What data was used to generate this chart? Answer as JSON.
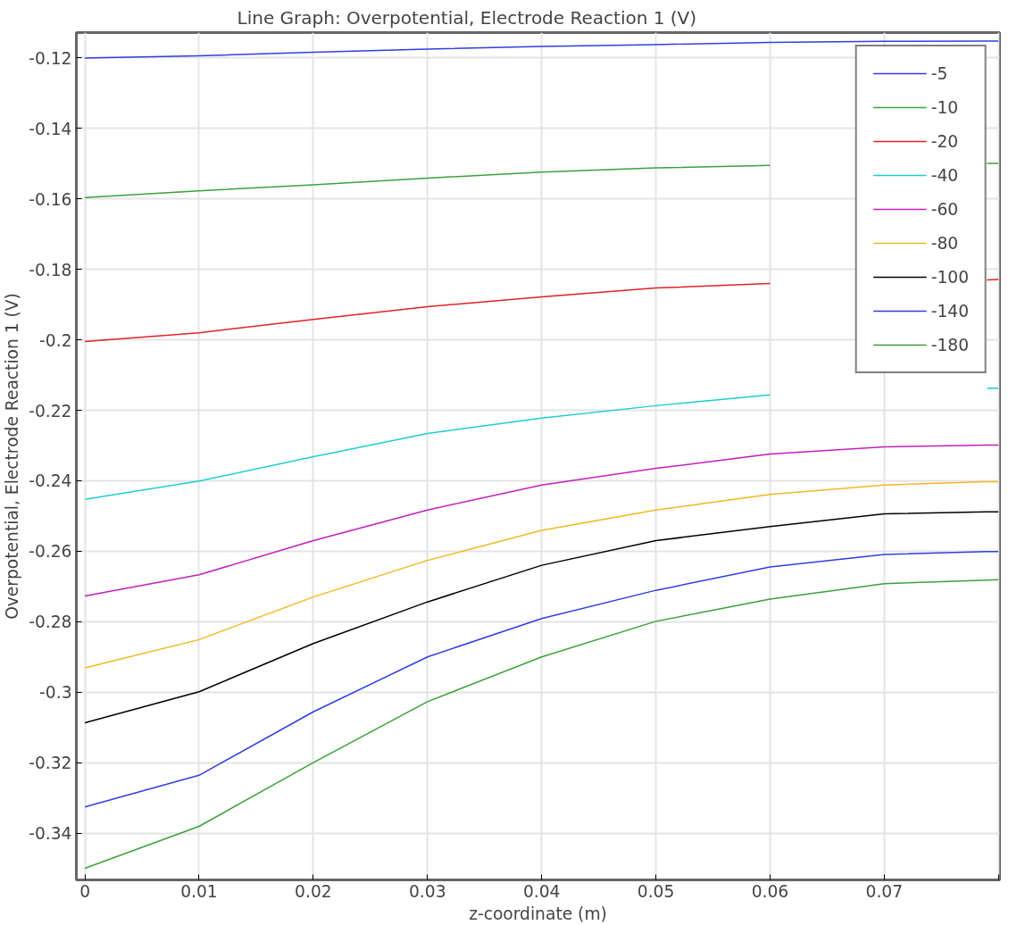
{
  "chart_data": {
    "type": "line",
    "title": "Line Graph: Overpotential, Electrode Reaction 1 (V)",
    "xlabel": "z-coordinate (m)",
    "ylabel": "Overpotential, Electrode Reaction 1 (V)",
    "x": [
      0,
      0.01,
      0.02,
      0.03,
      0.04,
      0.05,
      0.06,
      0.07,
      0.079,
      0.08
    ],
    "series": [
      {
        "name": "-5",
        "color": "#2d3fe0",
        "values": [
          -0.12,
          -0.1194,
          -0.1184,
          -0.1175,
          -0.1167,
          -0.1162,
          -0.1156,
          -0.1153,
          -0.1152,
          -0.1152
        ]
      },
      {
        "name": "-10",
        "color": "#3aa13a",
        "values": [
          -0.1596,
          -0.1577,
          -0.156,
          -0.1541,
          -0.1524,
          -0.1512,
          -0.1505,
          null,
          -0.1499,
          -0.1499
        ]
      },
      {
        "name": "-20",
        "color": "#e0202a",
        "values": [
          -0.2005,
          -0.198,
          -0.1942,
          -0.1906,
          -0.1878,
          -0.1853,
          -0.184,
          null,
          -0.183,
          -0.1829
        ]
      },
      {
        "name": "-40",
        "color": "#20cccc",
        "values": [
          -0.2453,
          -0.2401,
          -0.2332,
          -0.2266,
          -0.2222,
          -0.2187,
          -0.2156,
          null,
          -0.2138,
          -0.2137
        ]
      },
      {
        "name": "-60",
        "color": "#c020c0",
        "values": [
          -0.2727,
          -0.2667,
          -0.257,
          -0.2483,
          -0.2412,
          -0.2365,
          -0.2324,
          -0.2304,
          -0.2299,
          -0.2299
        ]
      },
      {
        "name": "-80",
        "color": "#f0b820",
        "values": [
          -0.2931,
          -0.2851,
          -0.273,
          -0.2626,
          -0.2541,
          -0.2483,
          -0.2439,
          -0.2412,
          -0.2403,
          -0.2403
        ]
      },
      {
        "name": "-100",
        "color": "#000000",
        "values": [
          -0.3087,
          -0.2999,
          -0.2862,
          -0.2744,
          -0.264,
          -0.257,
          -0.253,
          -0.2494,
          -0.2488,
          -0.2488
        ]
      },
      {
        "name": "-140",
        "color": "#2d3fe0",
        "values": [
          -0.3326,
          -0.3236,
          -0.3056,
          -0.29,
          -0.2791,
          -0.2711,
          -0.2645,
          -0.2609,
          -0.2601,
          -0.2601
        ]
      },
      {
        "name": "-180",
        "color": "#3aa13a",
        "values": [
          -0.35,
          -0.3381,
          -0.32,
          -0.3027,
          -0.29,
          -0.2799,
          -0.2736,
          -0.2692,
          -0.2682,
          -0.2681
        ]
      }
    ],
    "xlim": [
      -0.00075,
      0.0801
    ],
    "ylim": [
      -0.3533,
      -0.1128
    ],
    "xticks": [
      0,
      0.01,
      0.02,
      0.03,
      0.04,
      0.05,
      0.06,
      0.07,
      {
        "value": 0.08,
        "label": null
      }
    ],
    "yticks": [
      -0.34,
      -0.32,
      -0.3,
      -0.28,
      -0.26,
      -0.24,
      -0.22,
      -0.2,
      -0.18,
      -0.16,
      -0.14,
      -0.12
    ],
    "grid": true,
    "legend": "top right",
    "marker": "none",
    "line_style": "solid"
  }
}
